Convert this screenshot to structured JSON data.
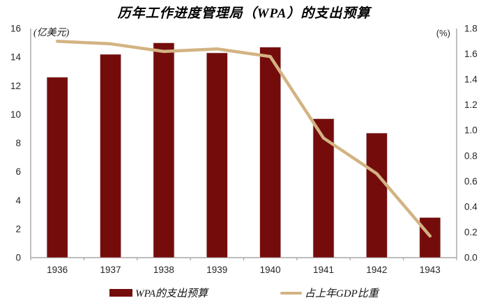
{
  "title": "历年工作进度管理局（WPA）的支出预算",
  "left_axis_unit": "(亿美元)",
  "right_axis_unit": "(%)",
  "legend": {
    "bar_label": "WPA的支出预算",
    "line_label": "占上年GDP比重"
  },
  "colors": {
    "bar": "#750C0C",
    "line": "#D3B383",
    "axis": "#A6A6A6",
    "tick_text": "#262626"
  },
  "chart_data": {
    "type": "bar",
    "subtype": "combo-bar-line-dual-axis",
    "title": "历年工作进度管理局（WPA）的支出预算",
    "categories": [
      "1936",
      "1937",
      "1938",
      "1939",
      "1940",
      "1941",
      "1942",
      "1943"
    ],
    "series": [
      {
        "name": "WPA的支出预算",
        "type": "bar",
        "axis": "left",
        "values": [
          12.6,
          14.2,
          15.0,
          14.3,
          14.7,
          9.7,
          8.7,
          2.8
        ]
      },
      {
        "name": "占上年GDP比重",
        "type": "line",
        "axis": "right",
        "values": [
          1.7,
          1.68,
          1.62,
          1.64,
          1.58,
          0.94,
          0.66,
          0.17
        ]
      }
    ],
    "left_axis": {
      "label": "(亿美元)",
      "min": 0,
      "max": 16,
      "step": 2,
      "tick_format": "integer"
    },
    "right_axis": {
      "label": "(%)",
      "min": 0,
      "max": 1.8,
      "step": 0.2,
      "tick_format": "one_decimal"
    },
    "xlabel": "",
    "ylabel_left": "亿美元",
    "ylabel_right": "%",
    "grid": false,
    "legend_position": "bottom"
  }
}
